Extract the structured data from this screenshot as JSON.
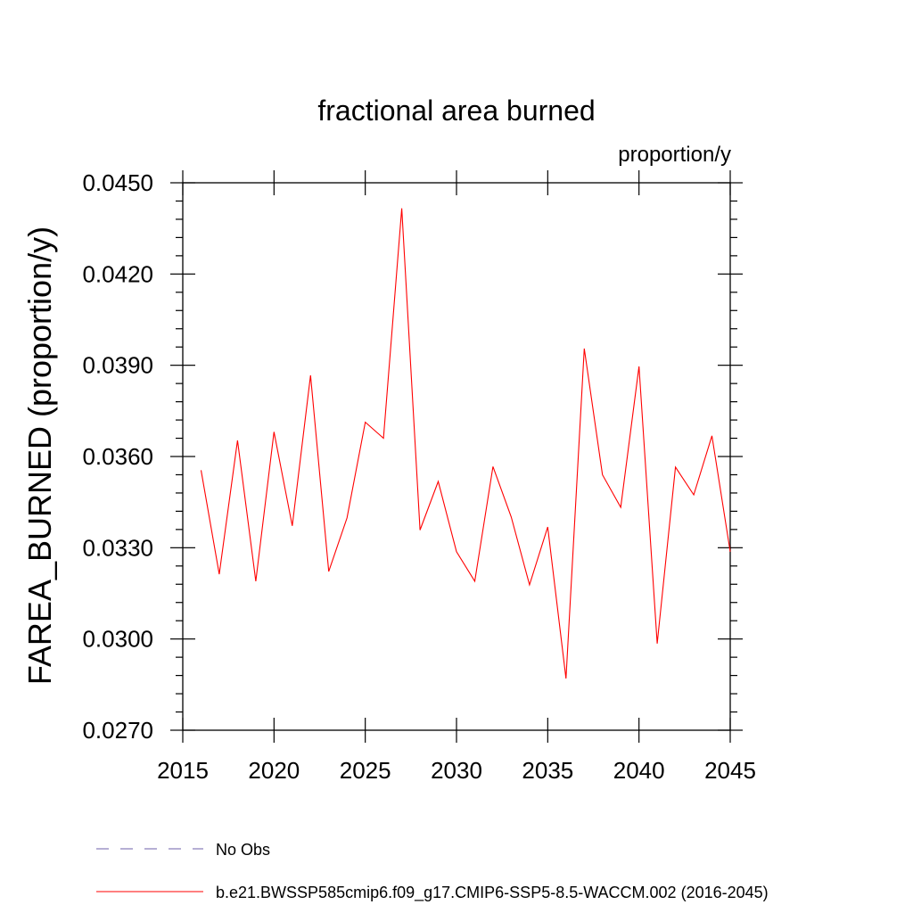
{
  "chart_data": {
    "type": "line",
    "title": "fractional area burned",
    "units_label": "proportion/y",
    "xlabel": "",
    "ylabel": "FAREA_BURNED  (proportion/y)",
    "xlim": [
      2015,
      2045
    ],
    "ylim": [
      0.027,
      0.045
    ],
    "x_ticks": [
      2015,
      2020,
      2025,
      2030,
      2035,
      2040,
      2045
    ],
    "x_tick_labels": [
      "2015",
      "2020",
      "2025",
      "2030",
      "2035",
      "2040",
      "2045"
    ],
    "y_ticks": [
      0.027,
      0.03,
      0.033,
      0.036,
      0.039,
      0.042,
      0.045
    ],
    "y_tick_labels": [
      "0.0270",
      "0.0300",
      "0.0330",
      "0.0360",
      "0.0390",
      "0.0420",
      "0.0450"
    ],
    "grid": false,
    "legend_position": "bottom",
    "series": [
      {
        "name": "No Obs",
        "color": "#6e5fa8",
        "dash": "dashed",
        "x": [],
        "values": []
      },
      {
        "name": "b.e21.BWSSP585cmip6.f09_g17.CMIP6-SSP5-8.5-WACCM.002 (2016-2045)",
        "color": "#ff0000",
        "dash": "solid",
        "x": [
          2016,
          2017,
          2018,
          2019,
          2020,
          2021,
          2022,
          2023,
          2024,
          2025,
          2026,
          2027,
          2028,
          2029,
          2030,
          2031,
          2032,
          2033,
          2034,
          2035,
          2036,
          2037,
          2038,
          2039,
          2040,
          2041,
          2042,
          2043,
          2044,
          2045
        ],
        "values": [
          0.03555,
          0.03213,
          0.03653,
          0.0319,
          0.03681,
          0.03372,
          0.03867,
          0.03222,
          0.03398,
          0.03713,
          0.0366,
          0.04416,
          0.03358,
          0.03518,
          0.03287,
          0.0319,
          0.03567,
          0.03401,
          0.03178,
          0.03368,
          0.0287,
          0.03955,
          0.0354,
          0.03433,
          0.03896,
          0.02985,
          0.03565,
          0.03474,
          0.03668,
          0.03287
        ]
      }
    ]
  }
}
